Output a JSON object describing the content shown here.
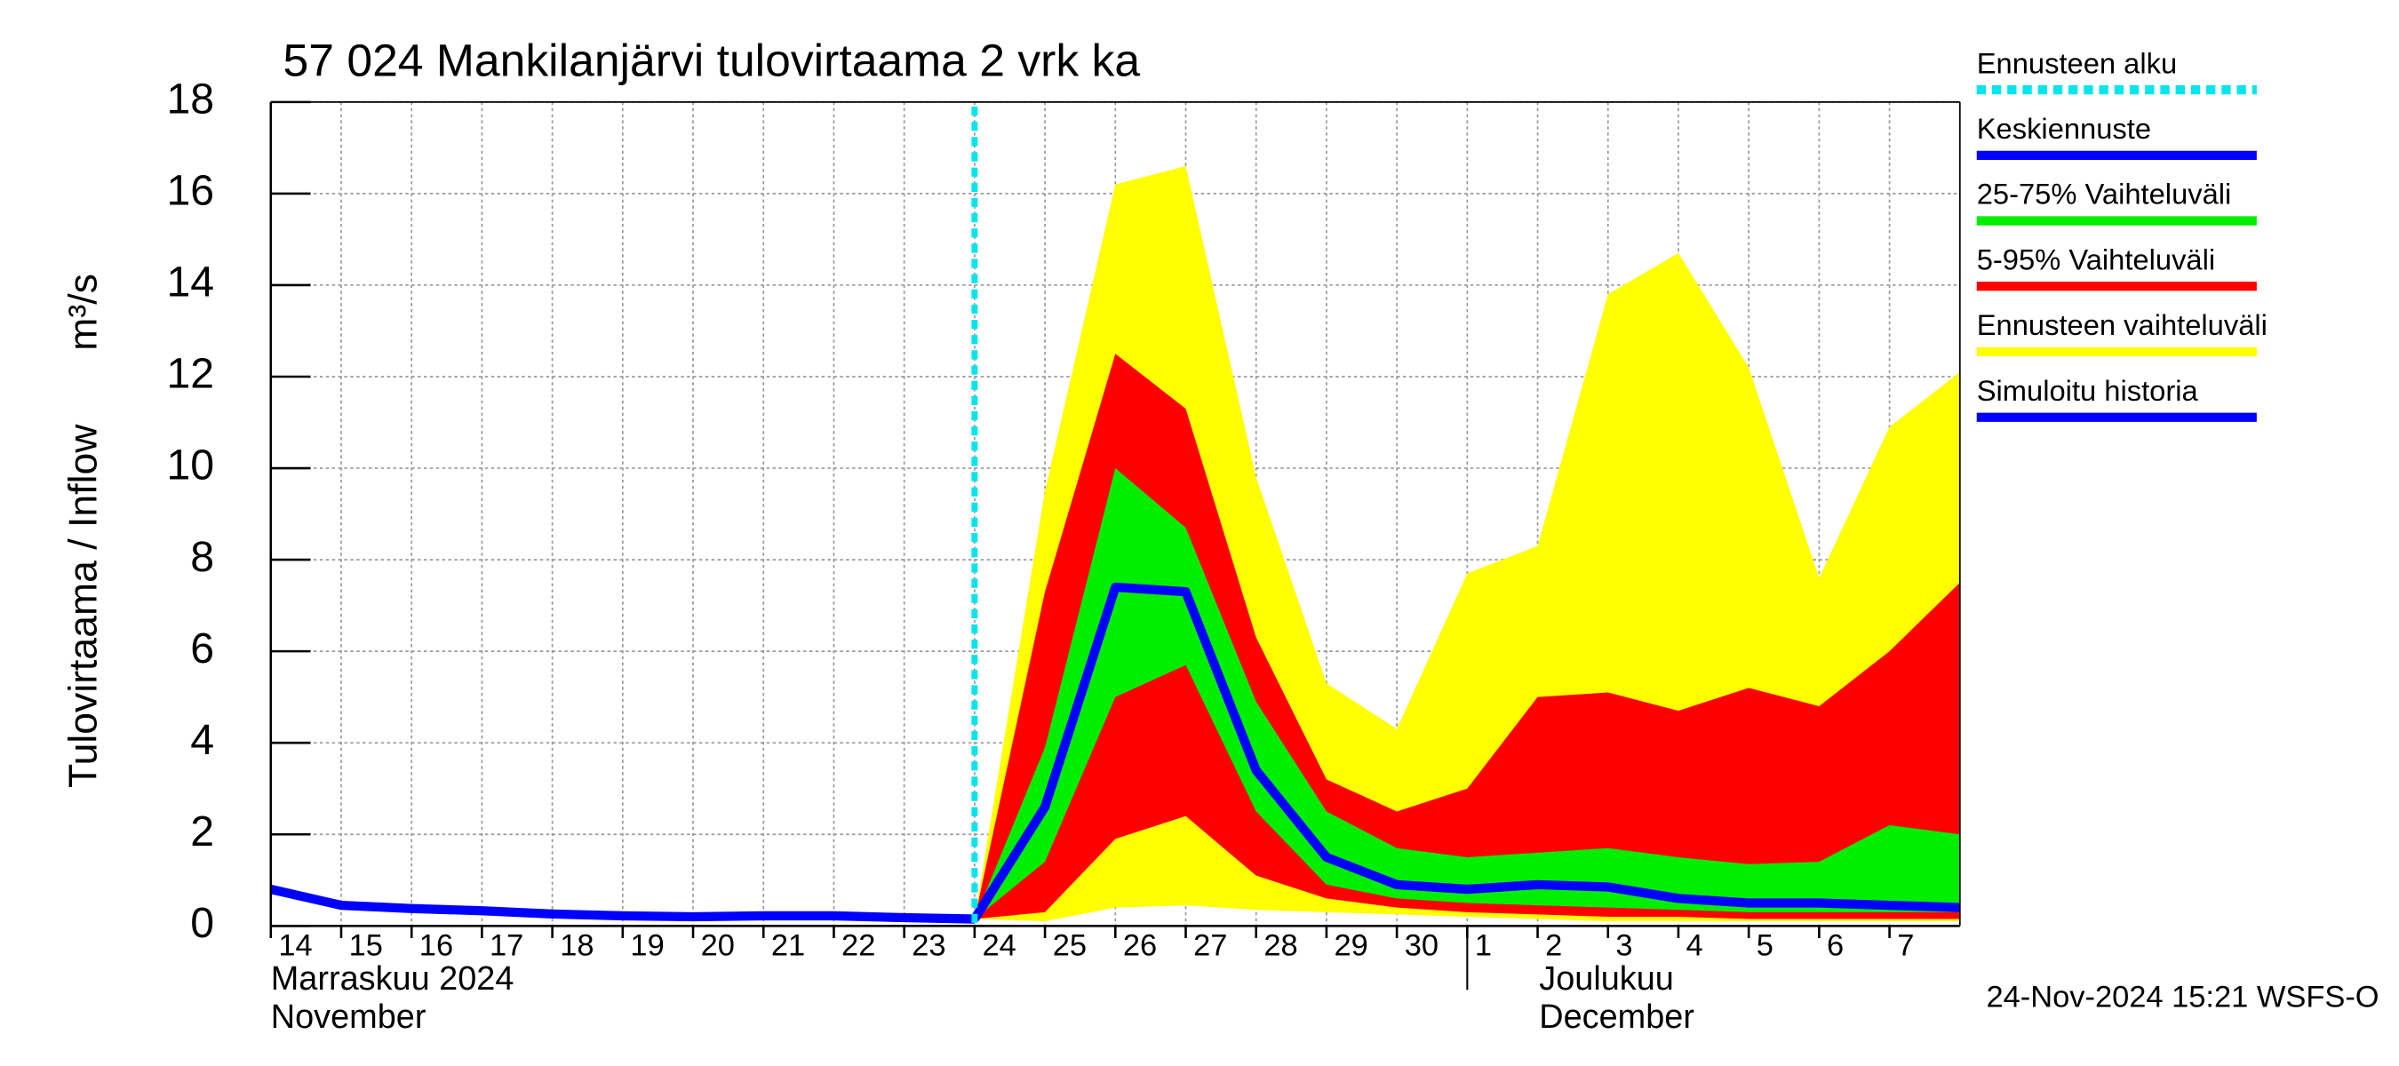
{
  "chart_data": {
    "type": "band_forecast",
    "title": "57 024 Mankilanjärvi tulovirtaama 2 vrk ka",
    "y_label": "Tulovirtaama / Inflow",
    "y_unit": "m³/s",
    "timestamp": "24-Nov-2024 15:21 WSFS-O",
    "xlim": [
      "2024-11-14",
      "2024-12-08"
    ],
    "ylim": [
      0,
      18
    ],
    "yticks": [
      0,
      2,
      4,
      6,
      8,
      10,
      12,
      14,
      16,
      18
    ],
    "grid": true,
    "xticks": [
      {
        "value": "2024-11-14",
        "label": "14"
      },
      {
        "value": "2024-11-15",
        "label": "15"
      },
      {
        "value": "2024-11-16",
        "label": "16"
      },
      {
        "value": "2024-11-17",
        "label": "17"
      },
      {
        "value": "2024-11-18",
        "label": "18"
      },
      {
        "value": "2024-11-19",
        "label": "19"
      },
      {
        "value": "2024-11-20",
        "label": "20"
      },
      {
        "value": "2024-11-21",
        "label": "21"
      },
      {
        "value": "2024-11-22",
        "label": "22"
      },
      {
        "value": "2024-11-23",
        "label": "23"
      },
      {
        "value": "2024-11-24",
        "label": "24"
      },
      {
        "value": "2024-11-25",
        "label": "25"
      },
      {
        "value": "2024-11-26",
        "label": "26"
      },
      {
        "value": "2024-11-27",
        "label": "27"
      },
      {
        "value": "2024-11-28",
        "label": "28"
      },
      {
        "value": "2024-11-29",
        "label": "29"
      },
      {
        "value": "2024-11-30",
        "label": "30"
      },
      {
        "value": "2024-12-01",
        "label": "1"
      },
      {
        "value": "2024-12-02",
        "label": "2"
      },
      {
        "value": "2024-12-03",
        "label": "3"
      },
      {
        "value": "2024-12-04",
        "label": "4"
      },
      {
        "value": "2024-12-05",
        "label": "5"
      },
      {
        "value": "2024-12-06",
        "label": "6"
      },
      {
        "value": "2024-12-07",
        "label": "7"
      }
    ],
    "months": [
      {
        "x": "2024-11-14",
        "lines": [
          "Marraskuu 2024",
          "November"
        ]
      },
      {
        "x": "2024-12-01",
        "lines": [
          "Joulukuu",
          "December"
        ]
      }
    ],
    "forecast_start": {
      "name": "Ennusteen alku",
      "color": "#00e5ee",
      "x": "2024-11-24"
    },
    "series": [
      {
        "name": "Keskiennuste",
        "color": "#0000ff",
        "kind": "line",
        "x": [
          "2024-11-24",
          "2024-11-25",
          "2024-11-26",
          "2024-11-27",
          "2024-11-28",
          "2024-11-29",
          "2024-11-30",
          "2024-12-01",
          "2024-12-02",
          "2024-12-03",
          "2024-12-04",
          "2024-12-05",
          "2024-12-06",
          "2024-12-07",
          "2024-12-08"
        ],
        "values": [
          0.15,
          2.6,
          7.4,
          7.3,
          3.4,
          1.5,
          0.9,
          0.8,
          0.9,
          0.85,
          0.6,
          0.5,
          0.5,
          0.45,
          0.4
        ]
      },
      {
        "name": "25-75% Vaihteluväli",
        "color": "#00ee00",
        "kind": "band",
        "x": [
          "2024-11-24",
          "2024-11-25",
          "2024-11-26",
          "2024-11-27",
          "2024-11-28",
          "2024-11-29",
          "2024-11-30",
          "2024-12-01",
          "2024-12-02",
          "2024-12-03",
          "2024-12-04",
          "2024-12-05",
          "2024-12-06",
          "2024-12-07",
          "2024-12-08"
        ],
        "upper": [
          0.15,
          3.9,
          10.0,
          8.7,
          4.9,
          2.5,
          1.7,
          1.5,
          1.6,
          1.7,
          1.5,
          1.35,
          1.4,
          2.2,
          2.0
        ],
        "lower": [
          0.15,
          1.4,
          5.0,
          5.7,
          2.5,
          0.9,
          0.6,
          0.5,
          0.45,
          0.4,
          0.35,
          0.3,
          0.3,
          0.3,
          0.3
        ]
      },
      {
        "name": "5-95% Vaihteluväli",
        "color": "#ff0000",
        "kind": "band",
        "x": [
          "2024-11-24",
          "2024-11-25",
          "2024-11-26",
          "2024-11-27",
          "2024-11-28",
          "2024-11-29",
          "2024-11-30",
          "2024-12-01",
          "2024-12-02",
          "2024-12-03",
          "2024-12-04",
          "2024-12-05",
          "2024-12-06",
          "2024-12-07",
          "2024-12-08"
        ],
        "upper": [
          0.15,
          7.3,
          12.5,
          11.3,
          6.3,
          3.2,
          2.5,
          3.0,
          5.0,
          5.1,
          4.7,
          5.2,
          4.8,
          6.0,
          7.5
        ],
        "lower": [
          0.15,
          0.3,
          1.9,
          2.4,
          1.1,
          0.6,
          0.4,
          0.3,
          0.25,
          0.2,
          0.2,
          0.15,
          0.15,
          0.15,
          0.15
        ]
      },
      {
        "name": "Ennusteen vaihteluväli",
        "color": "#ffff00",
        "kind": "band",
        "x": [
          "2024-11-24",
          "2024-11-25",
          "2024-11-26",
          "2024-11-27",
          "2024-11-28",
          "2024-11-29",
          "2024-11-30",
          "2024-12-01",
          "2024-12-02",
          "2024-12-03",
          "2024-12-04",
          "2024-12-05",
          "2024-12-06",
          "2024-12-07",
          "2024-12-08"
        ],
        "upper": [
          0.15,
          9.5,
          16.2,
          16.6,
          9.8,
          5.3,
          4.3,
          7.7,
          8.3,
          13.8,
          14.7,
          12.2,
          7.6,
          10.9,
          12.1
        ],
        "lower": [
          0.15,
          0.1,
          0.4,
          0.45,
          0.35,
          0.3,
          0.25,
          0.2,
          0.15,
          0.1,
          0.1,
          0.1,
          0.1,
          0.1,
          0.1
        ]
      },
      {
        "name": "Simuloitu historia",
        "color": "#0000ff",
        "kind": "line",
        "x": [
          "2024-11-14",
          "2024-11-15",
          "2024-11-16",
          "2024-11-17",
          "2024-11-18",
          "2024-11-19",
          "2024-11-20",
          "2024-11-21",
          "2024-11-22",
          "2024-11-23",
          "2024-11-24"
        ],
        "values": [
          0.8,
          0.45,
          0.38,
          0.33,
          0.26,
          0.22,
          0.2,
          0.22,
          0.22,
          0.18,
          0.15
        ]
      }
    ]
  }
}
